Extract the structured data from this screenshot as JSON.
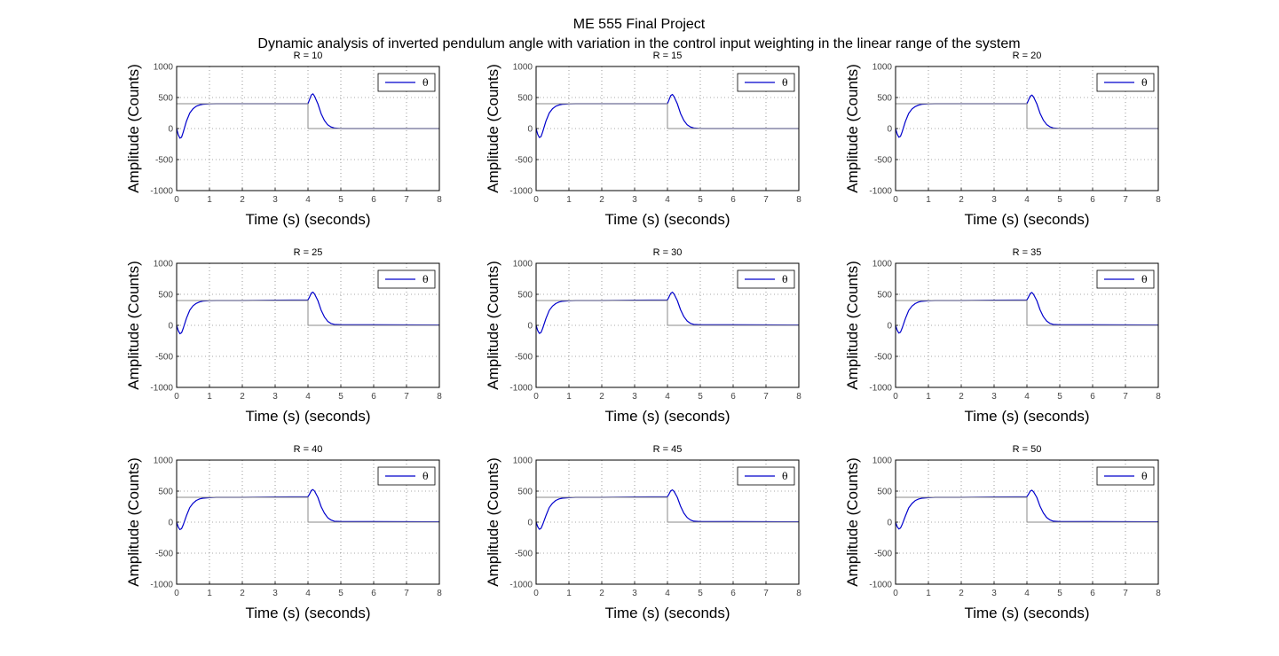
{
  "figure": {
    "title_line1": "ME 555 Final Project",
    "title_line2": "Dynamic analysis of inverted pendulum angle with variation in the control input weighting in the linear range of the system"
  },
  "colors": {
    "response": "#0000cc",
    "reference": "#888888",
    "grid": "#555555",
    "axes": "#000000"
  },
  "chart_data": [
    {
      "type": "line",
      "title": "R = 10",
      "xlabel": "Time (s) (seconds)",
      "ylabel": "Amplitude (Counts)",
      "xlim": [
        0,
        8
      ],
      "ylim": [
        -1000,
        1000
      ],
      "xticks": [
        0,
        1,
        2,
        3,
        4,
        5,
        6,
        7,
        8
      ],
      "yticks": [
        -1000,
        -500,
        0,
        500,
        1000
      ],
      "grid": true,
      "legend_position": "top-right",
      "series": [
        {
          "name": "θ",
          "x": [
            0,
            0.05,
            0.1,
            0.15,
            0.2,
            0.3,
            0.4,
            0.5,
            0.6,
            0.7,
            0.8,
            1.0,
            1.2,
            1.5,
            2,
            3,
            4,
            4.05,
            4.1,
            4.15,
            4.2,
            4.3,
            4.4,
            4.5,
            4.6,
            4.7,
            4.8,
            5.0,
            5.2,
            5.5,
            6,
            7,
            8
          ],
          "y": [
            0,
            -100,
            -155,
            -140,
            -60,
            120,
            250,
            320,
            360,
            380,
            390,
            398,
            400,
            400,
            400,
            400,
            400,
            470,
            540,
            560,
            520,
            400,
            240,
            130,
            60,
            25,
            10,
            0,
            0,
            0,
            0,
            0,
            0
          ]
        },
        {
          "name": "reference",
          "x": [
            0,
            4,
            4,
            8
          ],
          "y": [
            400,
            400,
            0,
            0
          ]
        }
      ]
    },
    {
      "type": "line",
      "title": "R = 15",
      "xlabel": "Time (s) (seconds)",
      "ylabel": "Amplitude (Counts)",
      "xlim": [
        0,
        8
      ],
      "ylim": [
        -1000,
        1000
      ],
      "xticks": [
        0,
        1,
        2,
        3,
        4,
        5,
        6,
        7,
        8
      ],
      "yticks": [
        -1000,
        -500,
        0,
        500,
        1000
      ],
      "grid": true,
      "legend_position": "top-right",
      "series": [
        {
          "name": "θ",
          "x": [
            0,
            0.05,
            0.1,
            0.15,
            0.2,
            0.3,
            0.4,
            0.5,
            0.6,
            0.7,
            0.8,
            1.0,
            1.2,
            1.5,
            2,
            3,
            4,
            4.05,
            4.1,
            4.15,
            4.2,
            4.3,
            4.4,
            4.5,
            4.6,
            4.7,
            4.8,
            5.0,
            5.2,
            5.5,
            6,
            7,
            8
          ],
          "y": [
            0,
            -95,
            -145,
            -130,
            -55,
            120,
            250,
            320,
            360,
            380,
            390,
            398,
            400,
            400,
            400,
            400,
            400,
            465,
            530,
            550,
            515,
            400,
            240,
            130,
            60,
            25,
            10,
            0,
            0,
            0,
            0,
            0,
            0
          ]
        },
        {
          "name": "reference",
          "x": [
            0,
            4,
            4,
            8
          ],
          "y": [
            400,
            400,
            0,
            0
          ]
        }
      ]
    },
    {
      "type": "line",
      "title": "R = 20",
      "xlabel": "Time (s) (seconds)",
      "ylabel": "Amplitude (Counts)",
      "xlim": [
        0,
        8
      ],
      "ylim": [
        -1000,
        1000
      ],
      "xticks": [
        0,
        1,
        2,
        3,
        4,
        5,
        6,
        7,
        8
      ],
      "yticks": [
        -1000,
        -500,
        0,
        500,
        1000
      ],
      "grid": true,
      "legend_position": "top-right",
      "series": [
        {
          "name": "θ",
          "x": [
            0,
            0.05,
            0.1,
            0.15,
            0.2,
            0.3,
            0.4,
            0.5,
            0.6,
            0.7,
            0.8,
            1.0,
            1.2,
            1.5,
            2,
            3,
            4,
            4.05,
            4.1,
            4.15,
            4.2,
            4.3,
            4.4,
            4.5,
            4.6,
            4.7,
            4.8,
            5.0,
            5.2,
            5.5,
            6,
            7,
            8
          ],
          "y": [
            0,
            -90,
            -140,
            -125,
            -55,
            115,
            245,
            315,
            355,
            378,
            390,
            398,
            400,
            400,
            400,
            400,
            400,
            460,
            520,
            540,
            510,
            400,
            245,
            135,
            65,
            28,
            10,
            0,
            0,
            0,
            0,
            0,
            0
          ]
        },
        {
          "name": "reference",
          "x": [
            0,
            4,
            4,
            8
          ],
          "y": [
            400,
            400,
            0,
            0
          ]
        }
      ]
    },
    {
      "type": "line",
      "title": "R = 25",
      "xlabel": "Time (s) (seconds)",
      "ylabel": "Amplitude (Counts)",
      "xlim": [
        0,
        8
      ],
      "ylim": [
        -1000,
        1000
      ],
      "xticks": [
        0,
        1,
        2,
        3,
        4,
        5,
        6,
        7,
        8
      ],
      "yticks": [
        -1000,
        -500,
        0,
        500,
        1000
      ],
      "grid": true,
      "legend_position": "top-right",
      "series": [
        {
          "name": "θ",
          "x": [
            0,
            0.05,
            0.1,
            0.15,
            0.2,
            0.3,
            0.4,
            0.5,
            0.6,
            0.7,
            0.8,
            1.0,
            1.2,
            1.5,
            2,
            3,
            4,
            4.05,
            4.1,
            4.15,
            4.2,
            4.3,
            4.4,
            4.5,
            4.6,
            4.7,
            4.8,
            5.0,
            5.2,
            5.5,
            6,
            7,
            8
          ],
          "y": [
            0,
            -85,
            -135,
            -120,
            -50,
            115,
            245,
            315,
            355,
            378,
            390,
            398,
            400,
            400,
            400,
            405,
            410,
            460,
            520,
            535,
            505,
            400,
            245,
            135,
            65,
            30,
            15,
            10,
            10,
            10,
            10,
            8,
            5
          ]
        },
        {
          "name": "reference",
          "x": [
            0,
            4,
            4,
            8
          ],
          "y": [
            400,
            400,
            0,
            0
          ]
        }
      ]
    },
    {
      "type": "line",
      "title": "R = 30",
      "xlabel": "Time (s) (seconds)",
      "ylabel": "Amplitude (Counts)",
      "xlim": [
        0,
        8
      ],
      "ylim": [
        -1000,
        1000
      ],
      "xticks": [
        0,
        1,
        2,
        3,
        4,
        5,
        6,
        7,
        8
      ],
      "yticks": [
        -1000,
        -500,
        0,
        500,
        1000
      ],
      "grid": true,
      "legend_position": "top-right",
      "series": [
        {
          "name": "θ",
          "x": [
            0,
            0.05,
            0.1,
            0.15,
            0.2,
            0.3,
            0.4,
            0.5,
            0.6,
            0.7,
            0.8,
            1.0,
            1.2,
            1.5,
            2,
            3,
            4,
            4.05,
            4.1,
            4.15,
            4.2,
            4.3,
            4.4,
            4.5,
            4.6,
            4.7,
            4.8,
            5.0,
            5.2,
            5.5,
            6,
            7,
            8
          ],
          "y": [
            0,
            -85,
            -130,
            -115,
            -50,
            110,
            240,
            310,
            352,
            376,
            388,
            396,
            400,
            400,
            400,
            405,
            410,
            460,
            515,
            535,
            505,
            400,
            250,
            140,
            70,
            32,
            15,
            10,
            10,
            10,
            10,
            8,
            5
          ]
        },
        {
          "name": "reference",
          "x": [
            0,
            4,
            4,
            8
          ],
          "y": [
            400,
            400,
            0,
            0
          ]
        }
      ]
    },
    {
      "type": "line",
      "title": "R = 35",
      "xlabel": "Time (s) (seconds)",
      "ylabel": "Amplitude (Counts)",
      "xlim": [
        0,
        8
      ],
      "ylim": [
        -1000,
        1000
      ],
      "xticks": [
        0,
        1,
        2,
        3,
        4,
        5,
        6,
        7,
        8
      ],
      "yticks": [
        -1000,
        -500,
        0,
        500,
        1000
      ],
      "grid": true,
      "legend_position": "top-right",
      "series": [
        {
          "name": "θ",
          "x": [
            0,
            0.05,
            0.1,
            0.15,
            0.2,
            0.3,
            0.4,
            0.5,
            0.6,
            0.7,
            0.8,
            1.0,
            1.2,
            1.5,
            2,
            3,
            4,
            4.05,
            4.1,
            4.15,
            4.2,
            4.3,
            4.4,
            4.5,
            4.6,
            4.7,
            4.8,
            5.0,
            5.2,
            5.5,
            6,
            7,
            8
          ],
          "y": [
            0,
            -80,
            -125,
            -110,
            -45,
            110,
            240,
            310,
            352,
            376,
            388,
            396,
            400,
            400,
            400,
            405,
            410,
            458,
            512,
            530,
            500,
            400,
            250,
            140,
            70,
            32,
            15,
            10,
            10,
            10,
            10,
            8,
            5
          ]
        },
        {
          "name": "reference",
          "x": [
            0,
            4,
            4,
            8
          ],
          "y": [
            400,
            400,
            0,
            0
          ]
        }
      ]
    },
    {
      "type": "line",
      "title": "R = 40",
      "xlabel": "Time (s) (seconds)",
      "ylabel": "Amplitude (Counts)",
      "xlim": [
        0,
        8
      ],
      "ylim": [
        -1000,
        1000
      ],
      "xticks": [
        0,
        1,
        2,
        3,
        4,
        5,
        6,
        7,
        8
      ],
      "yticks": [
        -1000,
        -500,
        0,
        500,
        1000
      ],
      "grid": true,
      "legend_position": "top-right",
      "series": [
        {
          "name": "θ",
          "x": [
            0,
            0.05,
            0.1,
            0.15,
            0.2,
            0.3,
            0.4,
            0.5,
            0.6,
            0.7,
            0.8,
            1.0,
            1.2,
            1.5,
            2,
            3,
            4,
            4.05,
            4.1,
            4.15,
            4.2,
            4.3,
            4.4,
            4.5,
            4.6,
            4.7,
            4.8,
            5.0,
            5.2,
            5.5,
            6,
            7,
            8
          ],
          "y": [
            0,
            -80,
            -120,
            -105,
            -45,
            105,
            235,
            305,
            350,
            374,
            386,
            395,
            400,
            400,
            400,
            405,
            410,
            455,
            510,
            525,
            500,
            400,
            250,
            145,
            72,
            34,
            15,
            10,
            10,
            10,
            10,
            8,
            5
          ]
        },
        {
          "name": "reference",
          "x": [
            0,
            4,
            4,
            8
          ],
          "y": [
            400,
            400,
            0,
            0
          ]
        }
      ]
    },
    {
      "type": "line",
      "title": "R = 45",
      "xlabel": "Time (s) (seconds)",
      "ylabel": "Amplitude (Counts)",
      "xlim": [
        0,
        8
      ],
      "ylim": [
        -1000,
        1000
      ],
      "xticks": [
        0,
        1,
        2,
        3,
        4,
        5,
        6,
        7,
        8
      ],
      "yticks": [
        -1000,
        -500,
        0,
        500,
        1000
      ],
      "grid": true,
      "legend_position": "top-right",
      "series": [
        {
          "name": "θ",
          "x": [
            0,
            0.05,
            0.1,
            0.15,
            0.2,
            0.3,
            0.4,
            0.5,
            0.6,
            0.7,
            0.8,
            1.0,
            1.2,
            1.5,
            2,
            3,
            4,
            4.05,
            4.1,
            4.15,
            4.2,
            4.3,
            4.4,
            4.5,
            4.6,
            4.7,
            4.8,
            5.0,
            5.2,
            5.5,
            6,
            7,
            8
          ],
          "y": [
            0,
            -75,
            -115,
            -100,
            -40,
            105,
            235,
            305,
            350,
            374,
            386,
            395,
            400,
            400,
            400,
            405,
            410,
            455,
            505,
            520,
            495,
            400,
            255,
            145,
            74,
            35,
            16,
            10,
            10,
            10,
            10,
            8,
            5
          ]
        },
        {
          "name": "reference",
          "x": [
            0,
            4,
            4,
            8
          ],
          "y": [
            400,
            400,
            0,
            0
          ]
        }
      ]
    },
    {
      "type": "line",
      "title": "R = 50",
      "xlabel": "Time (s) (seconds)",
      "ylabel": "Amplitude (Counts)",
      "xlim": [
        0,
        8
      ],
      "ylim": [
        -1000,
        1000
      ],
      "xticks": [
        0,
        1,
        2,
        3,
        4,
        5,
        6,
        7,
        8
      ],
      "yticks": [
        -1000,
        -500,
        0,
        500,
        1000
      ],
      "grid": true,
      "legend_position": "top-right",
      "series": [
        {
          "name": "θ",
          "x": [
            0,
            0.05,
            0.1,
            0.15,
            0.2,
            0.3,
            0.4,
            0.5,
            0.6,
            0.7,
            0.8,
            1.0,
            1.2,
            1.5,
            2,
            3,
            4,
            4.05,
            4.1,
            4.15,
            4.2,
            4.3,
            4.4,
            4.5,
            4.6,
            4.7,
            4.8,
            5.0,
            5.2,
            5.5,
            6,
            7,
            8
          ],
          "y": [
            0,
            -75,
            -110,
            -95,
            -40,
            100,
            230,
            300,
            348,
            372,
            385,
            394,
            400,
            400,
            400,
            405,
            410,
            452,
            500,
            515,
            490,
            400,
            255,
            148,
            75,
            36,
            16,
            10,
            10,
            10,
            10,
            8,
            5
          ]
        },
        {
          "name": "reference",
          "x": [
            0,
            4,
            4,
            8
          ],
          "y": [
            400,
            400,
            0,
            0
          ]
        }
      ]
    }
  ]
}
